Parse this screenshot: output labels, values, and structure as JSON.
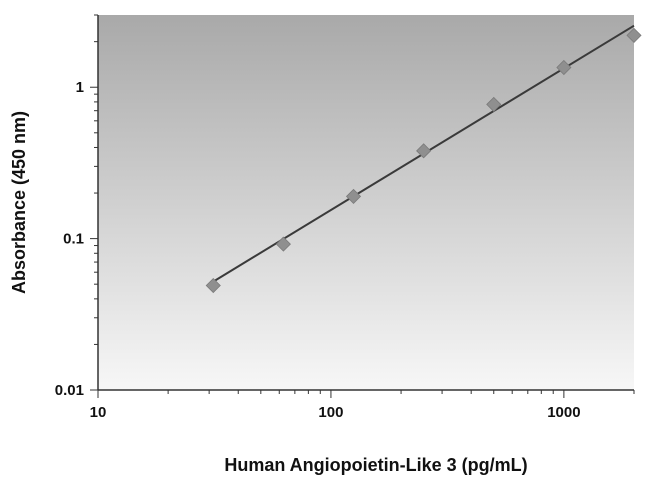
{
  "chart_data": {
    "type": "scatter",
    "title": "",
    "xlabel": "Human Angiopoietin-Like 3 (pg/mL)",
    "ylabel": "Absorbance (450 nm)",
    "xscale": "log",
    "yscale": "log",
    "xlim": [
      10,
      2000
    ],
    "ylim": [
      0.01,
      3
    ],
    "x_ticks": [
      10,
      100,
      1000
    ],
    "x_tick_labels": [
      "10",
      "100",
      "1000"
    ],
    "y_ticks": [
      0.01,
      0.1,
      1
    ],
    "y_tick_labels": [
      "0.01",
      "0.1",
      "1"
    ],
    "grid": false,
    "legend": "none",
    "series": [
      {
        "marker": "diamond",
        "x": [
          31.25,
          62.5,
          125,
          250,
          500,
          1000,
          2000
        ],
        "y": [
          0.049,
          0.092,
          0.19,
          0.38,
          0.77,
          1.35,
          2.2
        ]
      }
    ],
    "fit_line": {
      "x": [
        31.25,
        2000
      ],
      "y": [
        0.052,
        2.55
      ]
    },
    "colors": {
      "plot_bg_top": "#a9a9a9",
      "plot_bg_bottom": "#f7f7f7",
      "marker": "#8f8f8f",
      "line": "#3a3a3a",
      "axis": "#333333"
    }
  }
}
